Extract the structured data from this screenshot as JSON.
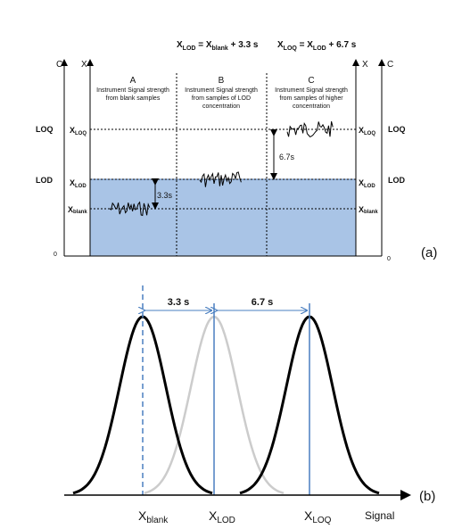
{
  "panel_a": {
    "eq_lod": {
      "x": "X",
      "x_sub": "LOD",
      "mid": " = X",
      "mid_sub": "blank",
      "tail": " + 3.3 s"
    },
    "eq_loq": {
      "x": "X",
      "x_sub": "LOQ",
      "mid": " = X",
      "mid_sub": "LOD",
      "tail": " + 6.7 s"
    },
    "axis_c": "C",
    "axis_x": "X",
    "zero": "0",
    "left_labels": {
      "loq": "LOQ",
      "lod": "LOD"
    },
    "right_labels": {
      "loq": "LOQ",
      "lod": "LOD"
    },
    "x_symbol": "X",
    "x_loq_sub": "LOQ",
    "x_lod_sub": "LOD",
    "x_blank_sub": "blank",
    "sections": [
      {
        "letter": "A",
        "lines": [
          "Instrument Signal strength",
          "from blank samples"
        ]
      },
      {
        "letter": "B",
        "lines": [
          "Instrument Signal strength",
          "from samples of LOD",
          "concentration"
        ]
      },
      {
        "letter": "C",
        "lines": [
          "Instrument Signal strength",
          "from samples of higher",
          "concentration"
        ]
      }
    ],
    "gap_a": "3.3s",
    "gap_c": "6.7s",
    "panel_label": "(a)",
    "colors": {
      "band": "#a9c4e6",
      "band_edge": "#5a86c0"
    }
  },
  "panel_b": {
    "gap_left": "3.3 s",
    "gap_right": "6.7 s",
    "x_main": "X",
    "ticks": [
      {
        "sub": "blank"
      },
      {
        "sub": "LOD"
      },
      {
        "sub": "LOQ"
      }
    ],
    "axis_label": "Signal",
    "panel_label": "(b)",
    "colors": {
      "curve": "#000000",
      "ghost": "#cccccc",
      "marker": "#4a7fc0"
    }
  }
}
